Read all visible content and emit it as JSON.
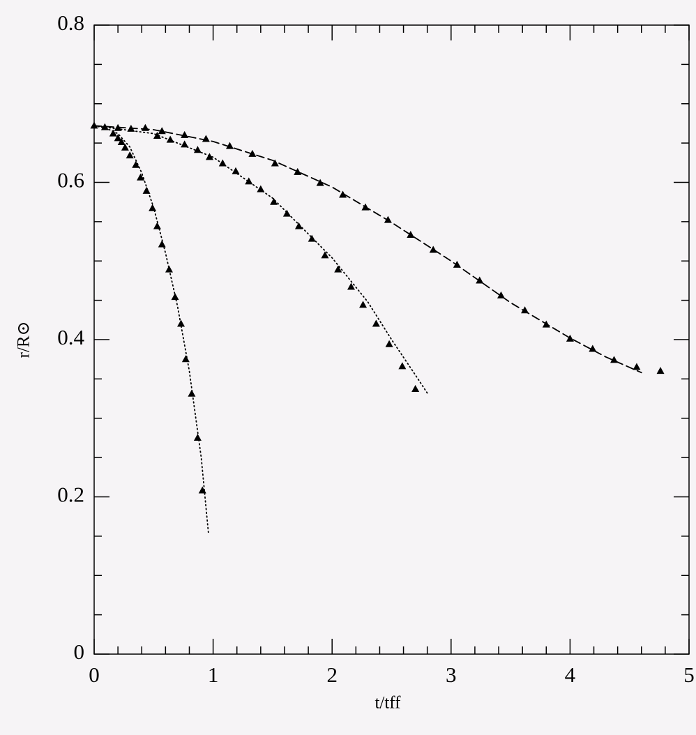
{
  "chart_data": {
    "type": "line",
    "xlabel": "t/tff",
    "ylabel": "r/R⊙",
    "xlim": [
      0,
      5
    ],
    "ylim": [
      0,
      0.8
    ],
    "xticks": [
      0,
      1,
      2,
      3,
      4,
      5
    ],
    "yticks": [
      0,
      0.2,
      0.4,
      0.6,
      0.8
    ],
    "xminorticks": [
      0.2,
      0.4,
      0.6,
      0.8,
      1.2,
      1.4,
      1.6,
      1.8,
      2.2,
      2.4,
      2.6,
      2.8,
      3.2,
      3.4,
      3.6,
      3.8,
      4.2,
      4.4,
      4.6,
      4.8
    ],
    "yminorticks": [
      0.05,
      0.1,
      0.15,
      0.25,
      0.3,
      0.35,
      0.45,
      0.5,
      0.55,
      0.65,
      0.7,
      0.75
    ],
    "series": [
      {
        "color": "#000000",
        "linestyle": "dotted",
        "marker": "none",
        "x": [
          0,
          0.1,
          0.2,
          0.3,
          0.4,
          0.5,
          0.6,
          0.7,
          0.8,
          0.9,
          0.96
        ],
        "values": [
          0.672,
          0.669,
          0.662,
          0.645,
          0.612,
          0.568,
          0.51,
          0.443,
          0.36,
          0.25,
          0.155
        ]
      },
      {
        "color": "#000000",
        "linestyle": "dotted",
        "marker": "none",
        "x": [
          0,
          0.5,
          1,
          1.5,
          2,
          2.3,
          2.5,
          2.7,
          2.8
        ],
        "values": [
          0.672,
          0.662,
          0.632,
          0.58,
          0.504,
          0.448,
          0.4,
          0.355,
          0.332
        ]
      },
      {
        "color": "#000000",
        "linestyle": "dashed",
        "marker": "none",
        "x": [
          0,
          0.5,
          1,
          1.5,
          2,
          2.5,
          3,
          3.5,
          4,
          4.3,
          4.6
        ],
        "values": [
          0.672,
          0.667,
          0.652,
          0.628,
          0.594,
          0.549,
          0.5,
          0.447,
          0.402,
          0.378,
          0.358
        ]
      },
      {
        "color": "#000000",
        "linestyle": "none",
        "marker": "triangle",
        "x": [
          0,
          0.16,
          0.2,
          0.23,
          0.26,
          0.3,
          0.35,
          0.39,
          0.44,
          0.49,
          0.53,
          0.57,
          0.63,
          0.68,
          0.73,
          0.77,
          0.82,
          0.87,
          0.91
        ],
        "values": [
          0.672,
          0.662,
          0.656,
          0.651,
          0.644,
          0.634,
          0.622,
          0.606,
          0.589,
          0.567,
          0.544,
          0.521,
          0.489,
          0.454,
          0.42,
          0.375,
          0.331,
          0.275,
          0.208
        ]
      },
      {
        "color": "#000000",
        "linestyle": "none",
        "marker": "triangle",
        "x": [
          0.09,
          0.53,
          0.64,
          0.76,
          0.87,
          0.97,
          1.08,
          1.19,
          1.3,
          1.4,
          1.51,
          1.62,
          1.72,
          1.83,
          1.94,
          2.05,
          2.16,
          2.26,
          2.37,
          2.48,
          2.59,
          2.7
        ],
        "values": [
          0.67,
          0.659,
          0.654,
          0.648,
          0.641,
          0.632,
          0.624,
          0.614,
          0.601,
          0.591,
          0.575,
          0.56,
          0.544,
          0.528,
          0.507,
          0.489,
          0.467,
          0.444,
          0.42,
          0.394,
          0.366,
          0.337
        ]
      },
      {
        "color": "#000000",
        "linestyle": "none",
        "marker": "triangle",
        "x": [
          0.2,
          0.31,
          0.43,
          0.57,
          0.76,
          0.94,
          1.14,
          1.33,
          1.52,
          1.71,
          1.9,
          2.09,
          2.28,
          2.47,
          2.66,
          2.85,
          3.05,
          3.24,
          3.42,
          3.62,
          3.8,
          4,
          4.19,
          4.37,
          4.56,
          4.76
        ],
        "values": [
          0.669,
          0.668,
          0.669,
          0.665,
          0.66,
          0.655,
          0.646,
          0.636,
          0.624,
          0.613,
          0.599,
          0.584,
          0.568,
          0.552,
          0.533,
          0.514,
          0.495,
          0.475,
          0.456,
          0.437,
          0.419,
          0.401,
          0.388,
          0.374,
          0.365,
          0.36
        ]
      }
    ]
  }
}
